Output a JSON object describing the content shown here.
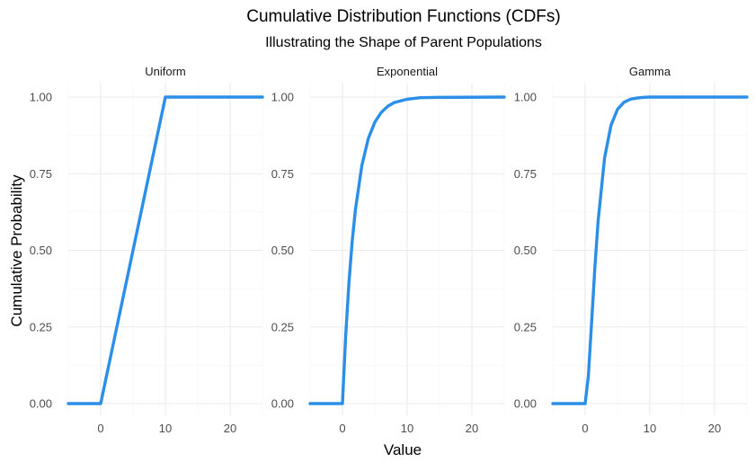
{
  "chart_data": {
    "type": "line",
    "title": "Cumulative Distribution Functions (CDFs)",
    "subtitle": "Illustrating the Shape of Parent Populations",
    "xlabel": "Value",
    "ylabel": "Cumulative Probability",
    "xlim": [
      -5,
      25
    ],
    "ylim": [
      0,
      1
    ],
    "x_ticks": [
      0,
      10,
      20
    ],
    "y_ticks": [
      0,
      0.25,
      0.5,
      0.75,
      1
    ],
    "y_tick_labels": [
      "0.00",
      "0.25",
      "0.50",
      "0.75",
      "1.00"
    ],
    "x_tick_labels": [
      "0",
      "10",
      "20"
    ],
    "grid": true,
    "line_color": "#2b8fe8",
    "panels": [
      {
        "name": "Uniform",
        "x": [
          -5,
          0,
          10,
          25
        ],
        "y": [
          0,
          0,
          1,
          1
        ]
      },
      {
        "name": "Exponential",
        "x": [
          -5,
          0,
          0.5,
          1,
          1.5,
          2,
          3,
          4,
          5,
          6,
          7,
          8,
          10,
          12,
          15,
          25
        ],
        "y": [
          0,
          0,
          0.221,
          0.393,
          0.528,
          0.632,
          0.777,
          0.865,
          0.918,
          0.95,
          0.97,
          0.982,
          0.993,
          0.998,
          0.999,
          1
        ]
      },
      {
        "name": "Gamma",
        "x": [
          -5,
          0,
          0.5,
          1,
          1.5,
          2,
          3,
          4,
          5,
          6,
          7,
          8,
          9,
          10,
          12,
          14,
          16,
          18,
          20,
          25
        ],
        "y": [
          0,
          0,
          0.09,
          0.264,
          0.442,
          0.594,
          0.801,
          0.908,
          0.96,
          0.983,
          0.993,
          0.997,
          0.999,
          1,
          1,
          1,
          1,
          1,
          1,
          1
        ]
      }
    ]
  }
}
